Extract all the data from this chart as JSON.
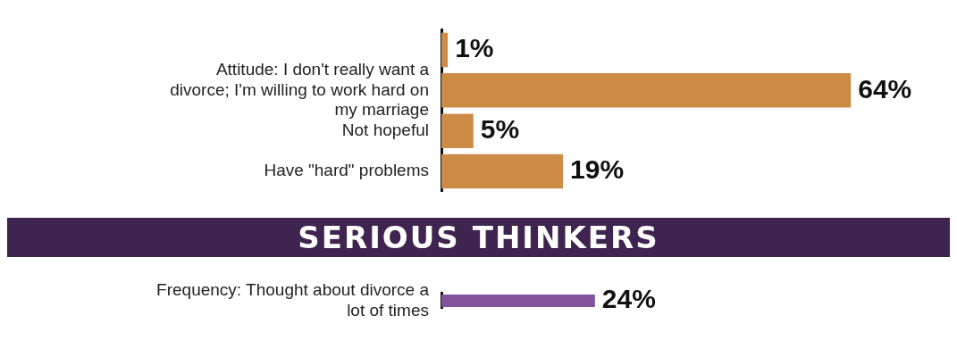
{
  "chart_data": [
    {
      "type": "bar",
      "orientation": "horizontal",
      "categories": [
        null,
        "Attitude: I don't really want a divorce; I'm willing to work hard on my marriage",
        "Not hopeful",
        "Have \"hard\" problems"
      ],
      "values": [
        1,
        64,
        5,
        19
      ],
      "value_labels": [
        "1%",
        "64%",
        "5%",
        "19%"
      ],
      "color": "#cc8c45",
      "grid": false,
      "legend": false
    },
    {
      "type": "bar",
      "orientation": "horizontal",
      "title": "SERIOUS THINKERS",
      "categories": [
        "Frequency: Thought about divorce a lot of times"
      ],
      "values": [
        24
      ],
      "value_labels": [
        "24%"
      ],
      "color": "#84529a",
      "grid": false,
      "legend": false
    }
  ]
}
